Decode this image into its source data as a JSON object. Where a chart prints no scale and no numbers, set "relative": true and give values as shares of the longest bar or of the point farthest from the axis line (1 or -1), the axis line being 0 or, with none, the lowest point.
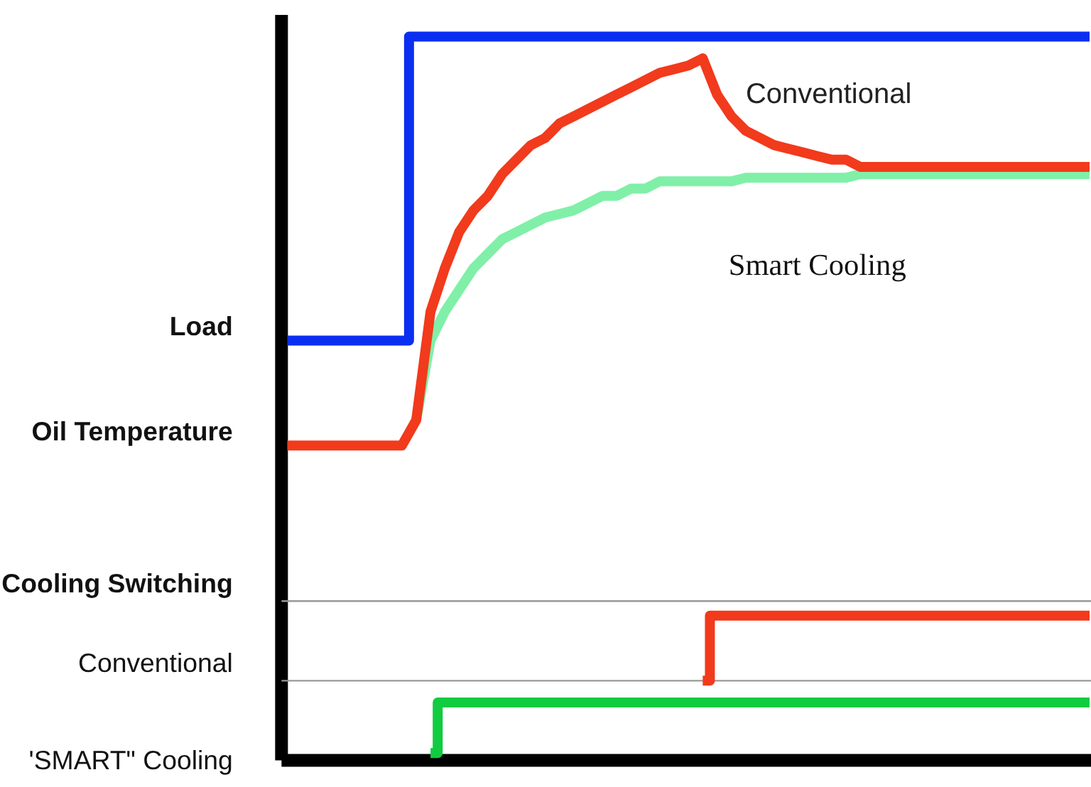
{
  "chart_data": {
    "type": "line",
    "relative": true,
    "grid": false,
    "categories": [
      null,
      null,
      null,
      null,
      null,
      null,
      null,
      null,
      null,
      null,
      null,
      null,
      null,
      null,
      null,
      null,
      null,
      null,
      null,
      null,
      null,
      null,
      null,
      null,
      null,
      null,
      null,
      null,
      null,
      null,
      null,
      null,
      null,
      null,
      null,
      null,
      null,
      null,
      null,
      null,
      null,
      null,
      null,
      null,
      null,
      null,
      null,
      null,
      null,
      null,
      null,
      null,
      null,
      null,
      null,
      null,
      null
    ],
    "series": [
      {
        "type": "step",
        "color": "#0a2ff0",
        "values": [
          0.58,
          0.58,
          0.58,
          0.58,
          0.58,
          0.58,
          0.58,
          0.58,
          0.58,
          1.0,
          1.0,
          1.0,
          1.0,
          1.0,
          1.0,
          1.0,
          1.0,
          1.0,
          1.0,
          1.0,
          1.0,
          1.0,
          1.0,
          1.0,
          1.0,
          1.0,
          1.0,
          1.0,
          1.0,
          1.0,
          1.0,
          1.0,
          1.0,
          1.0,
          1.0,
          1.0,
          1.0,
          1.0,
          1.0,
          1.0,
          1.0,
          1.0,
          1.0,
          1.0,
          1.0,
          1.0,
          1.0,
          1.0,
          1.0,
          1.0,
          1.0,
          1.0,
          1.0,
          1.0,
          1.0,
          1.0,
          1.0
        ]
      },
      {
        "name": "Smart Cooling",
        "color": "#80f0a8",
        "values": [
          null,
          null,
          null,
          null,
          null,
          null,
          null,
          null,
          null,
          0.47,
          0.58,
          0.62,
          0.65,
          0.68,
          0.7,
          0.72,
          0.73,
          0.74,
          0.75,
          0.755,
          0.76,
          0.77,
          0.78,
          0.78,
          0.79,
          0.79,
          0.8,
          0.8,
          0.8,
          0.8,
          0.8,
          0.8,
          0.805,
          0.805,
          0.805,
          0.805,
          0.805,
          0.805,
          0.805,
          0.805,
          0.81,
          0.81,
          0.81,
          0.81,
          0.81,
          0.81,
          0.81,
          0.81,
          0.81,
          0.81,
          0.81,
          0.81,
          0.81,
          0.81,
          0.81,
          0.81,
          0.81
        ]
      },
      {
        "name": "Conventional",
        "color": "#f23a1c",
        "values": [
          0.435,
          0.435,
          0.435,
          0.435,
          0.435,
          0.435,
          0.435,
          0.435,
          0.435,
          0.47,
          0.62,
          0.68,
          0.73,
          0.76,
          0.78,
          0.81,
          0.83,
          0.85,
          0.86,
          0.88,
          0.89,
          0.9,
          0.91,
          0.92,
          0.93,
          0.94,
          0.95,
          0.955,
          0.96,
          0.97,
          0.92,
          0.89,
          0.87,
          0.86,
          0.85,
          0.845,
          0.84,
          0.835,
          0.83,
          0.83,
          0.82,
          0.82,
          0.82,
          0.82,
          0.82,
          0.82,
          0.82,
          0.82,
          0.82,
          0.82,
          0.82,
          0.82,
          0.82,
          0.82,
          0.82,
          0.82,
          0.82
        ]
      },
      {
        "type": "step",
        "color": "#f23a1c",
        "values": [
          null,
          null,
          null,
          null,
          null,
          null,
          null,
          null,
          null,
          null,
          null,
          null,
          null,
          null,
          null,
          null,
          null,
          null,
          null,
          null,
          null,
          null,
          null,
          null,
          null,
          null,
          null,
          null,
          null,
          0.11,
          0.2,
          0.2,
          0.2,
          0.2,
          0.2,
          0.2,
          0.2,
          0.2,
          0.2,
          0.2,
          0.2,
          0.2,
          0.2,
          0.2,
          0.2,
          0.2,
          0.2,
          0.2,
          0.2,
          0.2,
          0.2,
          0.2,
          0.2,
          0.2,
          0.2,
          0.2,
          0.2
        ]
      },
      {
        "type": "step",
        "color": "#10cc40",
        "values": [
          null,
          null,
          null,
          null,
          null,
          null,
          null,
          null,
          null,
          null,
          0.01,
          0.08,
          0.08,
          0.08,
          0.08,
          0.08,
          0.08,
          0.08,
          0.08,
          0.08,
          0.08,
          0.08,
          0.08,
          0.08,
          0.08,
          0.08,
          0.08,
          0.08,
          0.08,
          0.08,
          0.08,
          0.08,
          0.08,
          0.08,
          0.08,
          0.08,
          0.08,
          0.08,
          0.08,
          0.08,
          0.08,
          0.08,
          0.08,
          0.08,
          0.08,
          0.08,
          0.08,
          0.08,
          0.08,
          0.08,
          0.08,
          0.08,
          0.08,
          0.08,
          0.08,
          0.08,
          0.08
        ]
      }
    ],
    "ref_lines": [
      {
        "axis": "y",
        "value": 0.22,
        "color": "#999999"
      },
      {
        "axis": "y",
        "value": 0.11,
        "color": "#999999"
      }
    ],
    "annotations": [
      "Load",
      "Oil Temperature",
      "Cooling Switching",
      "Conventional",
      "'SMART\" Cooling"
    ]
  }
}
